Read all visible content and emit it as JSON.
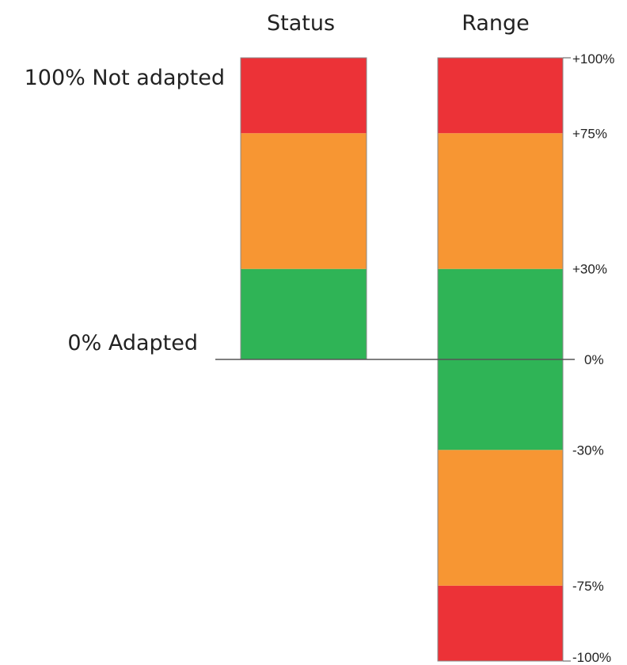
{
  "headers": {
    "status": "Status",
    "range": "Range"
  },
  "side_labels": {
    "top": "100% Not adapted",
    "zero": "0% Adapted"
  },
  "colors": {
    "red": "#ec3237",
    "orange": "#f79633",
    "green": "#2fb456",
    "line": "#555555"
  },
  "chart_data": {
    "type": "bar",
    "status_bar": {
      "name": "Status",
      "bands": [
        {
          "from": 0,
          "to": 30,
          "color": "green"
        },
        {
          "from": 30,
          "to": 75,
          "color": "orange"
        },
        {
          "from": 75,
          "to": 100,
          "color": "red"
        }
      ]
    },
    "range_bar": {
      "name": "Range",
      "bands": [
        {
          "from": -100,
          "to": -75,
          "color": "red"
        },
        {
          "from": -75,
          "to": -30,
          "color": "orange"
        },
        {
          "from": -30,
          "to": 30,
          "color": "green"
        },
        {
          "from": 30,
          "to": 75,
          "color": "orange"
        },
        {
          "from": 75,
          "to": 100,
          "color": "red"
        }
      ]
    },
    "ticks": [
      {
        "value": 100,
        "label": "+100%"
      },
      {
        "value": 75,
        "label": "+75%"
      },
      {
        "value": 30,
        "label": "+30%"
      },
      {
        "value": 0,
        "label": "0%"
      },
      {
        "value": -30,
        "label": "-30%"
      },
      {
        "value": -75,
        "label": "-75%"
      },
      {
        "value": -100,
        "label": "-100%"
      }
    ]
  }
}
